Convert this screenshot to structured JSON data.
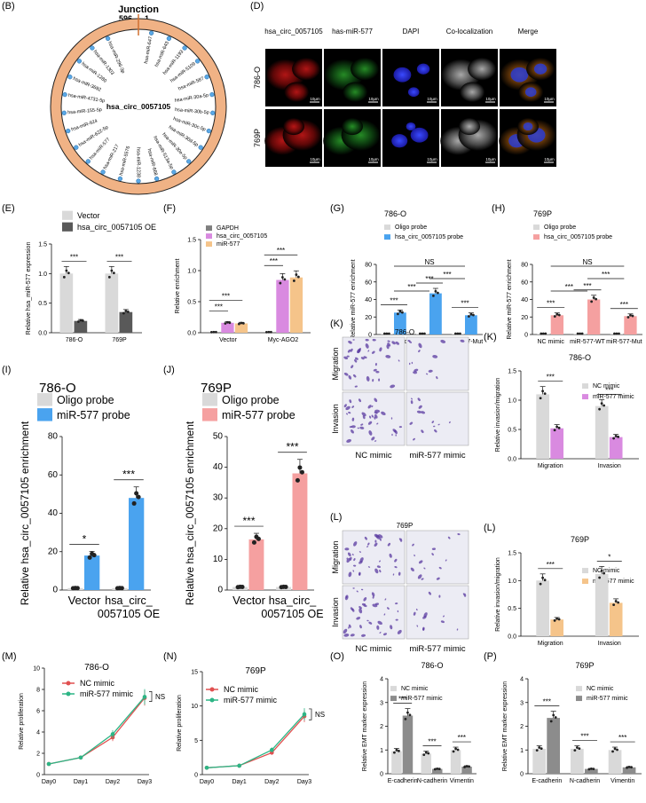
{
  "panels": {
    "B": {
      "label": "(B)",
      "title": "Junction",
      "junction_left": "596",
      "junction_right": "1",
      "center": "hsa_circ_0057105",
      "mirnas": [
        "hsa-miR-647",
        "hsa-miR-643",
        "hsa-miR-1193",
        "hsa-miR-5109",
        "hsa-miR-587",
        "hsa-miR-30a-5p",
        "hsa-miR-30b-5p",
        "hsa-miR-30c-5p",
        "hsa-miR-30d-5p",
        "hsa-miR-30e-5p",
        "hsa-miR-513a-5p",
        "hsa-miR-668",
        "hsa-miR-1238",
        "hsa-miR-5576",
        "hsa-miR-217",
        "hsa-miR-577",
        "hsa-miR-622-5p",
        "hsa-miR-924",
        "hsa-miR-155-5p",
        "hsa-miR-4731-5p",
        "hsa-miR-3692",
        "hsa-miR-1280",
        "hsa-miR-1303",
        "hsa-miR-296-3p"
      ]
    },
    "D": {
      "label": "(D)",
      "columns": [
        "hsa_circ_0057105",
        "has-miR-577",
        "DAPI",
        "Co-localization",
        "Merge"
      ],
      "rows": [
        "786-O",
        "769P"
      ],
      "scale_bar": "10μm"
    },
    "K": {
      "label": "(K)",
      "cell": "786-O",
      "rows": [
        "Migration",
        "Invasion"
      ],
      "cols": [
        "NC mimic",
        "miR-577 mimic"
      ]
    },
    "L": {
      "label": "(L)",
      "cell": "769P",
      "rows": [
        "Migration",
        "Invasion"
      ],
      "cols": [
        "NC mimic",
        "miR-577 mimic"
      ]
    }
  },
  "chart_data": [
    {
      "panel": "(E)",
      "type": "bar",
      "categories": [
        "786-O",
        "769P"
      ],
      "series": [
        {
          "name": "Vector",
          "color": "#d9d9d9",
          "values": [
            1.0,
            1.0
          ]
        },
        {
          "name": "hsa_circ_0057105 OE",
          "color": "#595959",
          "values": [
            0.2,
            0.35
          ]
        }
      ],
      "ylabel": "Relative hsa_miR-577 expression",
      "ylim": [
        0,
        1.5
      ],
      "yticks": [
        "0.0",
        "0.5",
        "1.0",
        "1.5"
      ],
      "sig": [
        "***",
        "***"
      ]
    },
    {
      "panel": "(F)",
      "type": "bar",
      "categories": [
        "Vector",
        "Myc-AGO2"
      ],
      "series": [
        {
          "name": "GAPDH",
          "color": "#7f7f7f",
          "values": [
            0.01,
            0.01
          ]
        },
        {
          "name": "hsa_circ_0057105",
          "color": "#d98ae0",
          "values": [
            0.16,
            0.85
          ]
        },
        {
          "name": "miR-577",
          "color": "#f5c48a",
          "values": [
            0.15,
            0.89
          ]
        }
      ],
      "ylabel": "Relative enrichment",
      "ylim": [
        0,
        1.5
      ],
      "yticks": [
        "0.0",
        "0.5",
        "1.0",
        "1.5"
      ],
      "sig": [
        "***",
        "***",
        "***",
        "***"
      ]
    },
    {
      "panel": "(G)",
      "type": "bar",
      "cell": "786-O",
      "categories": [
        "NC mimic",
        "miR-577-WT",
        "miR-577-Mut"
      ],
      "series": [
        {
          "name": "Oligo probe",
          "color": "#d9d9d9",
          "values": [
            1,
            1,
            1
          ]
        },
        {
          "name": "hsa_circ_0057105 probe",
          "color": "#4aa3ef",
          "values": [
            25,
            47,
            22
          ]
        }
      ],
      "ylabel": "Relative miR-577 enrichment",
      "ylim": [
        0,
        80
      ],
      "yticks": [
        "0",
        "20",
        "40",
        "60",
        "80"
      ],
      "sig": [
        "***",
        "***",
        "***",
        "***",
        "***",
        "NS"
      ]
    },
    {
      "panel": "(H)",
      "type": "bar",
      "cell": "769P",
      "categories": [
        "NC mimic",
        "miR-577-WT",
        "miR-577-Mut"
      ],
      "series": [
        {
          "name": "Oligo probe",
          "color": "#d9d9d9",
          "values": [
            1,
            1,
            1
          ]
        },
        {
          "name": "hsa_circ_0057105 probe",
          "color": "#f5a0a0",
          "values": [
            22,
            40,
            21
          ]
        }
      ],
      "ylabel": "Relative miR-577 enrichment",
      "ylim": [
        0,
        80
      ],
      "yticks": [
        "0",
        "20",
        "40",
        "60",
        "80"
      ],
      "sig": [
        "***",
        "***",
        "***",
        "***",
        "***",
        "NS"
      ]
    },
    {
      "panel": "(I)",
      "type": "bar",
      "title": "786-O",
      "categories": [
        "Vector",
        "hsa_circ_ 0057105 OE"
      ],
      "series": [
        {
          "name": "Oligo probe",
          "color": "#d9d9d9",
          "values": [
            1,
            1
          ]
        },
        {
          "name": "miR-577 probe",
          "color": "#4aa3ef",
          "values": [
            18,
            48
          ]
        }
      ],
      "ylabel": "Relative hsa_circ_0057105 enrichment",
      "ylim": [
        0,
        80
      ],
      "yticks": [
        "0",
        "20",
        "40",
        "60",
        "80"
      ],
      "sig": [
        "*",
        "***"
      ]
    },
    {
      "panel": "(J)",
      "type": "bar",
      "title": "769P",
      "categories": [
        "Vector",
        "hsa_circ_ 0057105 OE"
      ],
      "series": [
        {
          "name": "Oligo probe",
          "color": "#d9d9d9",
          "values": [
            1,
            1
          ]
        },
        {
          "name": "miR-577 probe",
          "color": "#f5a0a0",
          "values": [
            16.5,
            38
          ]
        }
      ],
      "ylabel": "Relative hsa_circ_0057105 enrichment",
      "ylim": [
        0,
        50
      ],
      "yticks": [
        "0",
        "10",
        "20",
        "30",
        "40",
        "50"
      ],
      "sig": [
        "***",
        "***"
      ]
    },
    {
      "panel": "(K)",
      "type": "bar",
      "title": "786-O",
      "categories": [
        "Migration",
        "Invasion"
      ],
      "series": [
        {
          "name": "NC mimic",
          "color": "#d9d9d9",
          "values": [
            1.1,
            0.9
          ]
        },
        {
          "name": "miR-577 mimic",
          "color": "#d98ae0",
          "values": [
            0.52,
            0.37
          ]
        }
      ],
      "ylabel": "Relative invasion/migration",
      "ylim": [
        0,
        1.5
      ],
      "yticks": [
        "0.0",
        "0.5",
        "1.0",
        "1.5"
      ],
      "sig": [
        "***",
        "***"
      ]
    },
    {
      "panel": "(L)",
      "type": "bar",
      "title": "769P",
      "categories": [
        "Migration",
        "Invasion"
      ],
      "series": [
        {
          "name": "NC mimic",
          "color": "#d9d9d9",
          "values": [
            1.0,
            1.12
          ]
        },
        {
          "name": "miR-577 mimic",
          "color": "#f5c48a",
          "values": [
            0.3,
            0.6
          ]
        }
      ],
      "ylabel": "Relative invasion/migration",
      "ylim": [
        0,
        1.5
      ],
      "yticks": [
        "0.0",
        "0.5",
        "1.0",
        "1.5"
      ],
      "sig": [
        "***",
        "*"
      ]
    },
    {
      "panel": "(M)",
      "type": "line",
      "title": "786-O",
      "x": [
        "Day0",
        "Day1",
        "Day2",
        "Day3"
      ],
      "series": [
        {
          "name": "NC mimic",
          "color": "#e05050",
          "values": [
            1.0,
            1.6,
            3.5,
            7.2
          ]
        },
        {
          "name": "miR-577 mimic",
          "color": "#2cb585",
          "values": [
            1.0,
            1.6,
            3.8,
            7.3
          ]
        }
      ],
      "ylabel": "Relative proliferation",
      "ylim": [
        0,
        10
      ],
      "yticks": [
        "0",
        "2",
        "4",
        "6",
        "8",
        "10"
      ],
      "sig": [
        "NS"
      ]
    },
    {
      "panel": "(N)",
      "type": "line",
      "title": "769P",
      "x": [
        "Day0",
        "Day1",
        "Day2",
        "Day3"
      ],
      "series": [
        {
          "name": "NC mimic",
          "color": "#e05050",
          "values": [
            1.0,
            1.3,
            3.2,
            8.5
          ]
        },
        {
          "name": "miR-577 mimic",
          "color": "#2cb585",
          "values": [
            1.0,
            1.3,
            3.6,
            8.8
          ]
        }
      ],
      "ylabel": "Relative proliferation",
      "ylim": [
        0,
        15
      ],
      "yticks": [
        "0",
        "5",
        "10",
        "15"
      ],
      "sig": [
        "NS"
      ]
    },
    {
      "panel": "(O)",
      "type": "bar",
      "title": "786-O",
      "categories": [
        "E-cadherin",
        "N-cadherin",
        "Vimentin"
      ],
      "series": [
        {
          "name": "NC mimic",
          "color": "#d9d9d9",
          "values": [
            0.95,
            0.85,
            1.0
          ]
        },
        {
          "name": "miR-577 mimic",
          "color": "#8c8c8c",
          "values": [
            2.45,
            0.2,
            0.3
          ]
        }
      ],
      "ylabel": "Relative EMT marker expression",
      "ylim": [
        0,
        4
      ],
      "yticks": [
        "0",
        "1",
        "2",
        "3",
        "4"
      ],
      "sig": [
        "***",
        "***",
        "***"
      ]
    },
    {
      "panel": "(P)",
      "type": "bar",
      "title": "769P",
      "categories": [
        "E-cadherin",
        "N-cadherin",
        "Vimentin"
      ],
      "series": [
        {
          "name": "NC mimic",
          "color": "#d9d9d9",
          "values": [
            1.05,
            1.05,
            1.0
          ]
        },
        {
          "name": "miR-577 mimic",
          "color": "#8c8c8c",
          "values": [
            2.35,
            0.2,
            0.27
          ]
        }
      ],
      "ylabel": "Relative EMT marker expression",
      "ylim": [
        0,
        4
      ],
      "yticks": [
        "0",
        "1",
        "2",
        "3",
        "4"
      ],
      "sig": [
        "***",
        "***",
        "***"
      ]
    }
  ]
}
